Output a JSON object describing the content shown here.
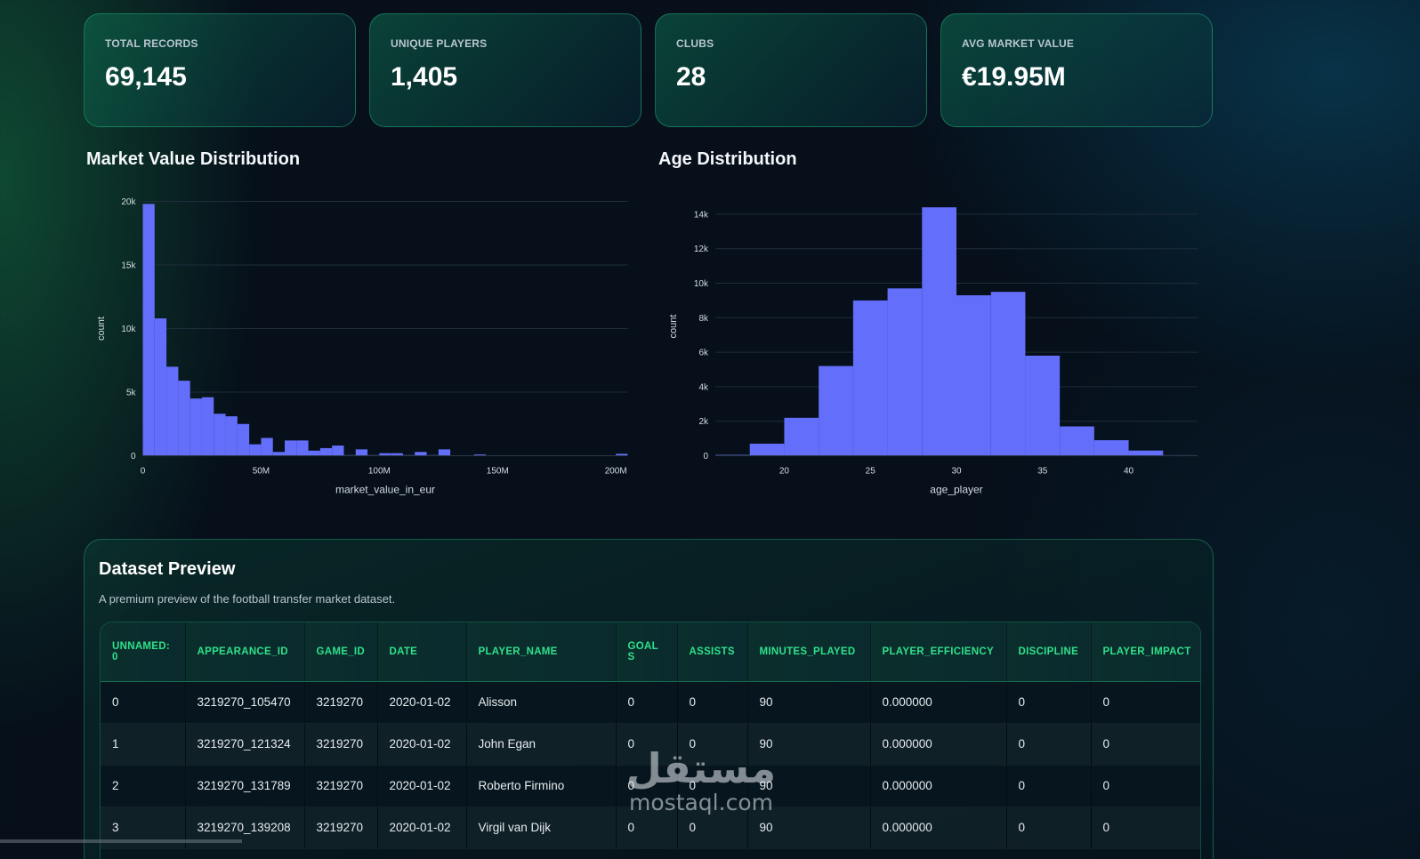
{
  "kpis": [
    {
      "label": "TOTAL RECORDS",
      "value": "69,145"
    },
    {
      "label": "UNIQUE PLAYERS",
      "value": "1,405"
    },
    {
      "label": "CLUBS",
      "value": "28"
    },
    {
      "label": "AVG MARKET VALUE",
      "value": "€19.95M"
    }
  ],
  "charts": {
    "market_title": "Market Value Distribution",
    "age_title": "Age Distribution"
  },
  "chart_data": [
    {
      "type": "bar",
      "title": "Market Value Distribution",
      "xlabel": "market_value_in_eur",
      "ylabel": "count",
      "bar_color": "#636efa",
      "grid": true,
      "xlim": [
        0,
        205000000
      ],
      "ylim": [
        0,
        20000
      ],
      "xticks": [
        0,
        50000000,
        100000000,
        150000000,
        200000000
      ],
      "xtick_labels": [
        "0",
        "50M",
        "100M",
        "150M",
        "200M"
      ],
      "yticks": [
        0,
        5000,
        10000,
        15000,
        20000
      ],
      "ytick_labels": [
        "0",
        "5k",
        "10k",
        "15k",
        "20k"
      ],
      "bin_width": 5000000,
      "bins": [
        [
          0,
          19800
        ],
        [
          5000000,
          10800
        ],
        [
          10000000,
          7000
        ],
        [
          15000000,
          5900
        ],
        [
          20000000,
          4500
        ],
        [
          25000000,
          4600
        ],
        [
          30000000,
          3300
        ],
        [
          35000000,
          3100
        ],
        [
          40000000,
          2500
        ],
        [
          45000000,
          900
        ],
        [
          50000000,
          1400
        ],
        [
          55000000,
          300
        ],
        [
          60000000,
          1200
        ],
        [
          65000000,
          1200
        ],
        [
          70000000,
          400
        ],
        [
          75000000,
          600
        ],
        [
          80000000,
          800
        ],
        [
          85000000,
          50
        ],
        [
          90000000,
          500
        ],
        [
          95000000,
          50
        ],
        [
          100000000,
          200
        ],
        [
          105000000,
          200
        ],
        [
          110000000,
          50
        ],
        [
          115000000,
          300
        ],
        [
          120000000,
          50
        ],
        [
          125000000,
          500
        ],
        [
          130000000,
          20
        ],
        [
          135000000,
          20
        ],
        [
          140000000,
          100
        ],
        [
          145000000,
          20
        ],
        [
          150000000,
          10
        ],
        [
          155000000,
          10
        ],
        [
          160000000,
          10
        ],
        [
          165000000,
          10
        ],
        [
          170000000,
          10
        ],
        [
          175000000,
          10
        ],
        [
          180000000,
          10
        ],
        [
          185000000,
          10
        ],
        [
          190000000,
          10
        ],
        [
          195000000,
          10
        ],
        [
          200000000,
          150
        ]
      ]
    },
    {
      "type": "bar",
      "title": "Age Distribution",
      "xlabel": "age_player",
      "ylabel": "count",
      "bar_color": "#636efa",
      "grid": true,
      "xlim": [
        16,
        44
      ],
      "ylim": [
        0,
        15000
      ],
      "xticks": [
        20,
        25,
        30,
        35,
        40
      ],
      "xtick_labels": [
        "20",
        "25",
        "30",
        "35",
        "40"
      ],
      "yticks": [
        0,
        2000,
        4000,
        6000,
        8000,
        10000,
        12000,
        14000
      ],
      "ytick_labels": [
        "0",
        "2k",
        "4k",
        "6k",
        "8k",
        "10k",
        "12k",
        "14k"
      ],
      "bin_width": 2,
      "bins": [
        [
          16,
          50
        ],
        [
          18,
          700
        ],
        [
          20,
          2200
        ],
        [
          22,
          5200
        ],
        [
          24,
          9000
        ],
        [
          26,
          9700
        ],
        [
          28,
          14400
        ],
        [
          30,
          9300
        ],
        [
          32,
          9500
        ],
        [
          34,
          5800
        ],
        [
          36,
          1700
        ],
        [
          38,
          900
        ],
        [
          40,
          300
        ],
        [
          42,
          30
        ]
      ]
    }
  ],
  "preview": {
    "title": "Dataset Preview",
    "subtitle": "A premium preview of the football transfer market dataset.",
    "columns": [
      "UNNAMED: 0",
      "APPEARANCE_ID",
      "GAME_ID",
      "DATE",
      "PLAYER_NAME",
      "GOALS",
      "ASSISTS",
      "MINUTES_PLAYED",
      "PLAYER_EFFICIENCY",
      "DISCIPLINE",
      "PLAYER_IMPACT"
    ],
    "rows": [
      [
        "0",
        "3219270_105470",
        "3219270",
        "2020-01-02",
        "Alisson",
        "0",
        "0",
        "90",
        "0.000000",
        "0",
        "0"
      ],
      [
        "1",
        "3219270_121324",
        "3219270",
        "2020-01-02",
        "John Egan",
        "0",
        "0",
        "90",
        "0.000000",
        "0",
        "0"
      ],
      [
        "2",
        "3219270_131789",
        "3219270",
        "2020-01-02",
        "Roberto Firmino",
        "0",
        "0",
        "90",
        "0.000000",
        "0",
        "0"
      ],
      [
        "3",
        "3219270_139208",
        "3219270",
        "2020-01-02",
        "Virgil van Dijk",
        "0",
        "0",
        "90",
        "0.000000",
        "0",
        "0"
      ]
    ]
  },
  "watermark": {
    "arabic": "مستقل",
    "latin": "mostaql.com"
  }
}
